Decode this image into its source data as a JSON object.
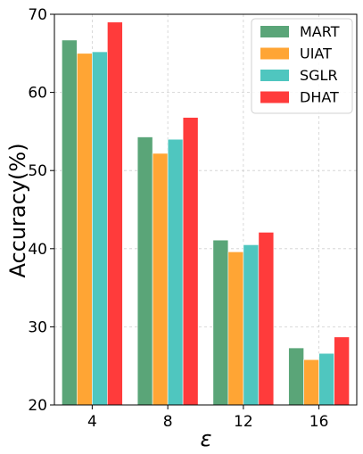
{
  "chart_data": {
    "type": "bar",
    "categories": [
      "4",
      "8",
      "12",
      "16"
    ],
    "series": [
      {
        "name": "MART",
        "color": "#5aa578",
        "values": [
          66.7,
          54.3,
          41.1,
          27.3
        ]
      },
      {
        "name": "UIAT",
        "color": "#ffa534",
        "values": [
          65.0,
          52.2,
          39.6,
          25.8
        ]
      },
      {
        "name": "SGLR",
        "color": "#4fc6bf",
        "values": [
          65.2,
          54.0,
          40.5,
          26.6
        ]
      },
      {
        "name": "DHAT",
        "color": "#ff3b3b",
        "values": [
          69.0,
          56.8,
          42.1,
          28.7
        ]
      }
    ],
    "xlabel": "ε",
    "ylabel": "Accuracy(%)",
    "ylim": [
      20,
      70
    ],
    "yticks": [
      20,
      30,
      40,
      50,
      60,
      70
    ],
    "grid": true,
    "legend_position": "top-right"
  }
}
